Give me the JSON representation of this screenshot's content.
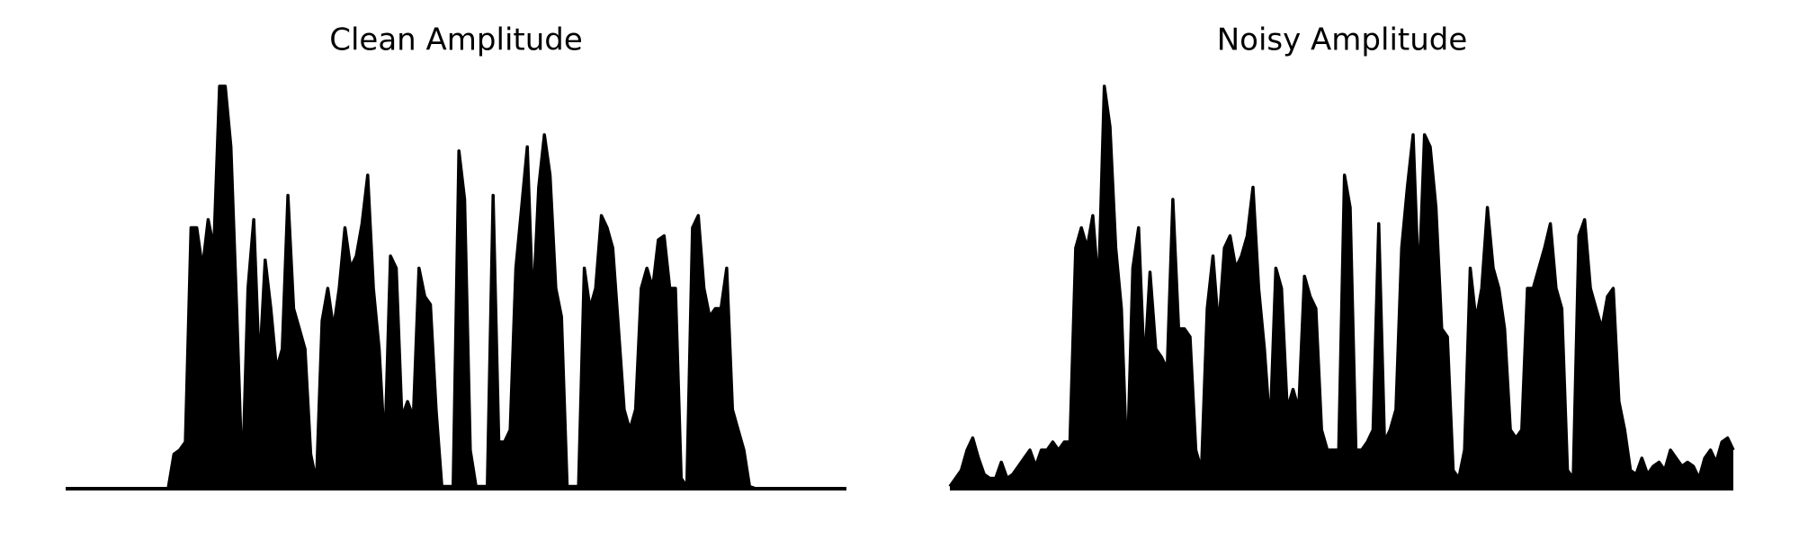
{
  "chart_data": [
    {
      "type": "area",
      "title": "Clean Amplitude",
      "color": "#000000",
      "values": [
        0.005,
        0.005,
        0.005,
        0.005,
        0.005,
        0.005,
        0.005,
        0.005,
        0.005,
        0.005,
        0.005,
        0.005,
        0.005,
        0.005,
        0.005,
        0.005,
        0.005,
        0.005,
        0.005,
        0.09,
        0.1,
        0.12,
        0.65,
        0.65,
        0.55,
        0.67,
        0.6,
        1.0,
        1.0,
        0.85,
        0.45,
        0.02,
        0.5,
        0.67,
        0.3,
        0.57,
        0.45,
        0.3,
        0.35,
        0.73,
        0.45,
        0.4,
        0.35,
        0.09,
        0.02,
        0.42,
        0.5,
        0.4,
        0.5,
        0.65,
        0.55,
        0.58,
        0.66,
        0.78,
        0.5,
        0.35,
        0.1,
        0.58,
        0.55,
        0.18,
        0.22,
        0.18,
        0.55,
        0.48,
        0.46,
        0.2,
        0.01,
        0.01,
        0.01,
        0.84,
        0.72,
        0.1,
        0.01,
        0.01,
        0.01,
        0.73,
        0.12,
        0.12,
        0.15,
        0.55,
        0.7,
        0.85,
        0.45,
        0.75,
        0.88,
        0.78,
        0.5,
        0.43,
        0.01,
        0.01,
        0.01,
        0.55,
        0.45,
        0.5,
        0.68,
        0.65,
        0.6,
        0.4,
        0.2,
        0.15,
        0.2,
        0.5,
        0.55,
        0.5,
        0.62,
        0.63,
        0.5,
        0.5,
        0.03,
        0.01,
        0.65,
        0.68,
        0.5,
        0.43,
        0.45,
        0.45,
        0.55,
        0.2,
        0.15,
        0.1,
        0.01,
        0.005,
        0.005,
        0.005,
        0.005,
        0.005,
        0.005,
        0.005,
        0.005,
        0.005,
        0.005,
        0.005,
        0.005,
        0.005,
        0.005,
        0.005,
        0.005,
        0.005
      ]
    },
    {
      "type": "area",
      "title": "Noisy Amplitude",
      "color": "#000000",
      "values": [
        0.01,
        0.03,
        0.05,
        0.1,
        0.13,
        0.08,
        0.04,
        0.03,
        0.03,
        0.07,
        0.03,
        0.04,
        0.06,
        0.08,
        0.1,
        0.06,
        0.1,
        0.1,
        0.12,
        0.1,
        0.12,
        0.12,
        0.6,
        0.65,
        0.6,
        0.68,
        0.5,
        1.0,
        0.9,
        0.6,
        0.45,
        0.05,
        0.55,
        0.65,
        0.3,
        0.54,
        0.35,
        0.33,
        0.3,
        0.72,
        0.4,
        0.4,
        0.38,
        0.1,
        0.05,
        0.45,
        0.58,
        0.4,
        0.6,
        0.63,
        0.55,
        0.58,
        0.63,
        0.75,
        0.5,
        0.35,
        0.15,
        0.55,
        0.5,
        0.2,
        0.25,
        0.2,
        0.53,
        0.48,
        0.45,
        0.15,
        0.1,
        0.1,
        0.1,
        0.78,
        0.7,
        0.1,
        0.1,
        0.12,
        0.15,
        0.66,
        0.12,
        0.15,
        0.2,
        0.6,
        0.75,
        0.88,
        0.5,
        0.88,
        0.85,
        0.7,
        0.4,
        0.38,
        0.05,
        0.03,
        0.1,
        0.55,
        0.42,
        0.5,
        0.7,
        0.55,
        0.5,
        0.4,
        0.15,
        0.13,
        0.15,
        0.5,
        0.5,
        0.55,
        0.6,
        0.66,
        0.5,
        0.45,
        0.05,
        0.03,
        0.63,
        0.67,
        0.5,
        0.45,
        0.4,
        0.48,
        0.5,
        0.22,
        0.15,
        0.05,
        0.04,
        0.08,
        0.04,
        0.06,
        0.07,
        0.05,
        0.1,
        0.08,
        0.06,
        0.07,
        0.06,
        0.03,
        0.08,
        0.1,
        0.07,
        0.12,
        0.13,
        0.1
      ]
    }
  ]
}
